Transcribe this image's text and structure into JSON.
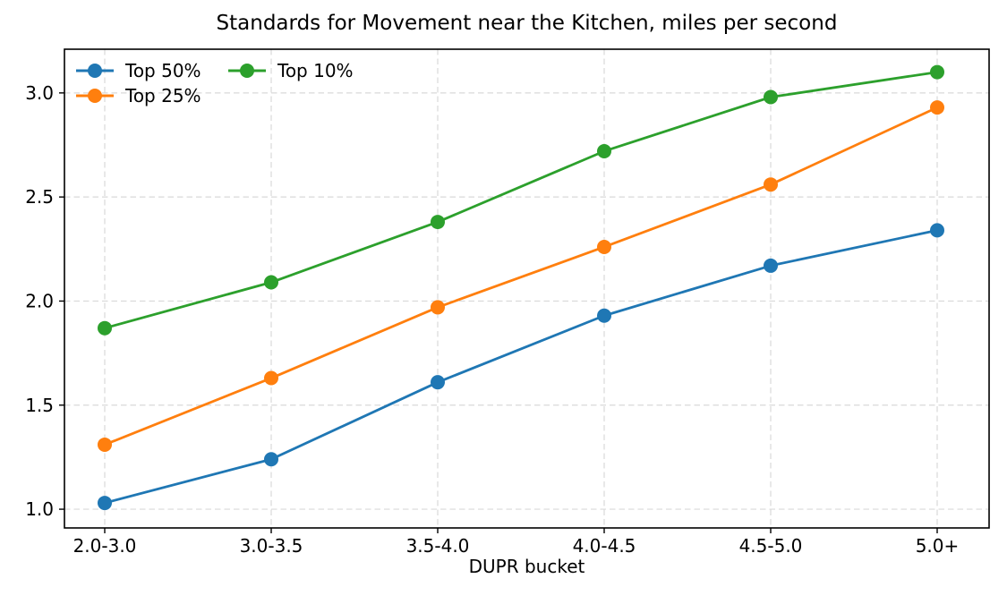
{
  "chart_data": {
    "type": "line",
    "title": "Standards for Movement near the Kitchen, miles per second",
    "xlabel": "DUPR bucket",
    "ylabel": "",
    "categories": [
      "2.0-3.0",
      "3.0-3.5",
      "3.5-4.0",
      "4.0-4.5",
      "4.5-5.0",
      "5.0+"
    ],
    "series": [
      {
        "name": "Top 50%",
        "color": "#1f77b4",
        "values": [
          1.03,
          1.24,
          1.61,
          1.93,
          2.17,
          2.34
        ]
      },
      {
        "name": "Top 25%",
        "color": "#ff7f0e",
        "values": [
          1.31,
          1.63,
          1.97,
          2.26,
          2.56,
          2.93
        ]
      },
      {
        "name": "Top 10%",
        "color": "#2ca02c",
        "values": [
          1.87,
          2.09,
          2.38,
          2.72,
          2.98,
          3.1
        ]
      }
    ],
    "yticks": [
      "1.0",
      "1.5",
      "2.0",
      "2.5",
      "3.0"
    ],
    "ylim": [
      0.91,
      3.21
    ],
    "grid": true,
    "legend": {
      "position": "upper left",
      "columns": 2
    }
  },
  "style": {
    "background": "#ffffff",
    "grid_color": "#d9d9d9",
    "spine_color": "#000000",
    "text_color": "#000000"
  }
}
